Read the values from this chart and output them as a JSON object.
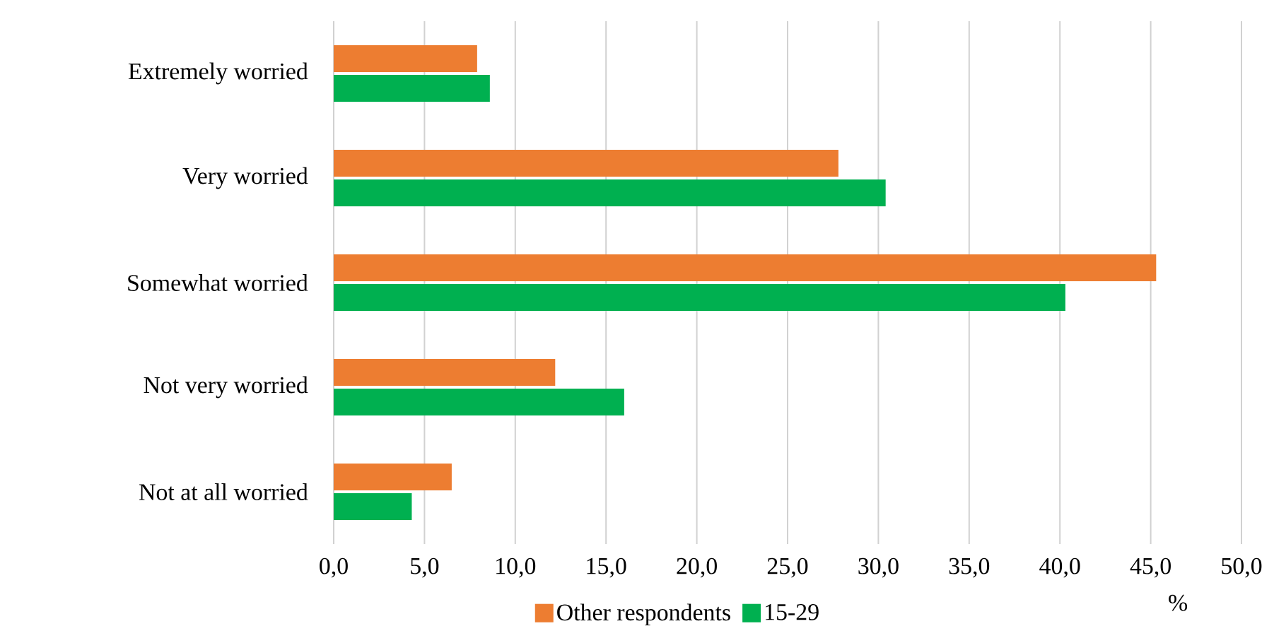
{
  "chart_data": {
    "type": "bar",
    "orientation": "horizontal",
    "xlabel": "%",
    "categories": [
      "Extremely worried",
      "Very worried",
      "Somewhat worried",
      "Not very worried",
      "Not at all worried"
    ],
    "series": [
      {
        "name": "Other respondents",
        "color": "#ed7d31",
        "values": [
          7.9,
          27.8,
          45.3,
          12.2,
          6.5
        ]
      },
      {
        "name": "15-29",
        "color": "#00b050",
        "values": [
          8.6,
          30.4,
          40.3,
          16.0,
          4.3
        ]
      }
    ],
    "xlim": [
      0,
      50
    ],
    "xticks": [
      {
        "value": 0,
        "label": "0,0"
      },
      {
        "value": 5,
        "label": "5,0"
      },
      {
        "value": 10,
        "label": "10,0"
      },
      {
        "value": 15,
        "label": "15,0"
      },
      {
        "value": 20,
        "label": "20,0"
      },
      {
        "value": 25,
        "label": "25,0"
      },
      {
        "value": 30,
        "label": "30,0"
      },
      {
        "value": 35,
        "label": "35,0"
      },
      {
        "value": 40,
        "label": "40,0"
      },
      {
        "value": 45,
        "label": "45,0"
      },
      {
        "value": 50,
        "label": "50,0"
      }
    ],
    "grid": "x",
    "legend": "bottom"
  }
}
